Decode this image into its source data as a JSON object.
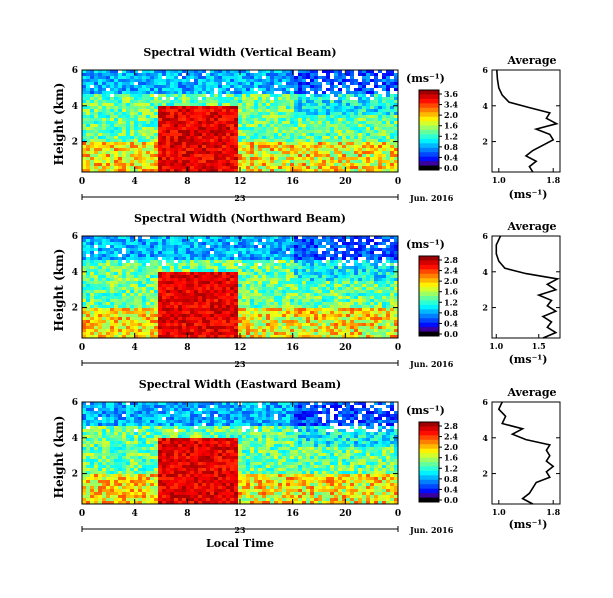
{
  "chart_data": [
    {
      "type": "heatmap",
      "title": "Spectral Width (Vertical Beam)",
      "ylabel": "Height (km)",
      "yticks": [
        "2",
        "4",
        "6"
      ],
      "ylim": [
        0.3,
        6
      ],
      "xlim": [
        0,
        24
      ],
      "xticks": [
        "0",
        "4",
        "8",
        "12",
        "16",
        "20",
        "0"
      ],
      "date_label": "23",
      "month_label": "Jun. 2016",
      "colorbar": {
        "unit": "(ms⁻¹)",
        "ticks": [
          "3.6",
          "3.4",
          "2.0",
          "1.6",
          "1.2",
          "0.8",
          "0.4",
          "0.0"
        ],
        "max": 3.6
      },
      "average": {
        "title": "Average",
        "xticks": [
          "1.0",
          "1.8"
        ],
        "xlim": [
          0.9,
          1.9
        ],
        "yticks": [
          "2",
          "4",
          "6"
        ],
        "xlabel": "(ms⁻¹)",
        "profile": [
          [
            1.5,
            0.3
          ],
          [
            1.45,
            0.6
          ],
          [
            1.55,
            0.9
          ],
          [
            1.4,
            1.2
          ],
          [
            1.5,
            1.5
          ],
          [
            1.65,
            1.8
          ],
          [
            1.8,
            2.1
          ],
          [
            1.75,
            2.4
          ],
          [
            1.55,
            2.7
          ],
          [
            1.85,
            3.0
          ],
          [
            1.7,
            3.3
          ],
          [
            1.75,
            3.6
          ],
          [
            1.45,
            3.9
          ],
          [
            1.15,
            4.2
          ],
          [
            1.05,
            4.6
          ],
          [
            1.0,
            5.0
          ],
          [
            0.98,
            5.5
          ],
          [
            0.97,
            6.0
          ]
        ]
      }
    },
    {
      "type": "heatmap",
      "title": "Spectral Width (Northward Beam)",
      "ylabel": "Height (km)",
      "yticks": [
        "2",
        "4",
        "6"
      ],
      "ylim": [
        0.3,
        6
      ],
      "xlim": [
        0,
        24
      ],
      "xticks": [
        "0",
        "4",
        "8",
        "12",
        "16",
        "20",
        "0"
      ],
      "date_label": "23",
      "month_label": "Jun. 2016",
      "colorbar": {
        "unit": "(ms⁻¹)",
        "ticks": [
          "2.8",
          "2.4",
          "2.0",
          "1.6",
          "1.2",
          "0.8",
          "0.4",
          "0.0"
        ],
        "max": 2.8
      },
      "average": {
        "title": "Average",
        "xticks": [
          "1.0",
          "1.5"
        ],
        "xlim": [
          0.95,
          1.75
        ],
        "yticks": [
          "2",
          "4",
          "6"
        ],
        "xlabel": "(ms⁻¹)",
        "profile": [
          [
            1.55,
            0.3
          ],
          [
            1.7,
            0.6
          ],
          [
            1.6,
            0.9
          ],
          [
            1.65,
            1.2
          ],
          [
            1.55,
            1.5
          ],
          [
            1.7,
            1.8
          ],
          [
            1.6,
            2.1
          ],
          [
            1.65,
            2.4
          ],
          [
            1.5,
            2.7
          ],
          [
            1.7,
            3.0
          ],
          [
            1.6,
            3.3
          ],
          [
            1.72,
            3.6
          ],
          [
            1.35,
            3.9
          ],
          [
            1.1,
            4.2
          ],
          [
            1.03,
            4.6
          ],
          [
            1.0,
            5.0
          ],
          [
            1.0,
            5.5
          ],
          [
            1.05,
            6.0
          ]
        ]
      }
    },
    {
      "type": "heatmap",
      "title": "Spectral Width (Eastward Beam)",
      "ylabel": "Height (km)",
      "yticks": [
        "2",
        "4",
        "6"
      ],
      "ylim": [
        0.3,
        6
      ],
      "xlim": [
        0,
        24
      ],
      "xticks": [
        "0",
        "4",
        "8",
        "12",
        "16",
        "20",
        "0"
      ],
      "date_label": "23",
      "month_label": "Jun. 2016",
      "xlabel": "Local Time",
      "colorbar": {
        "unit": "(ms⁻¹)",
        "ticks": [
          "2.8",
          "2.4",
          "2.0",
          "1.6",
          "1.2",
          "0.8",
          "0.4",
          "0.0"
        ],
        "max": 2.8
      },
      "average": {
        "title": "Average",
        "xticks": [
          "1.0",
          "1.8"
        ],
        "xlim": [
          0.9,
          1.9
        ],
        "yticks": [
          "2",
          "4",
          "6"
        ],
        "xlabel": "(ms⁻¹)",
        "profile": [
          [
            1.5,
            0.3
          ],
          [
            1.35,
            0.6
          ],
          [
            1.45,
            0.9
          ],
          [
            1.5,
            1.2
          ],
          [
            1.55,
            1.5
          ],
          [
            1.75,
            1.8
          ],
          [
            1.7,
            2.1
          ],
          [
            1.8,
            2.4
          ],
          [
            1.7,
            2.7
          ],
          [
            1.75,
            3.0
          ],
          [
            1.7,
            3.3
          ],
          [
            1.75,
            3.6
          ],
          [
            1.4,
            3.9
          ],
          [
            1.2,
            4.2
          ],
          [
            1.35,
            4.5
          ],
          [
            1.05,
            4.8
          ],
          [
            1.1,
            5.2
          ],
          [
            1.0,
            5.6
          ],
          [
            1.05,
            6.0
          ]
        ]
      }
    }
  ]
}
